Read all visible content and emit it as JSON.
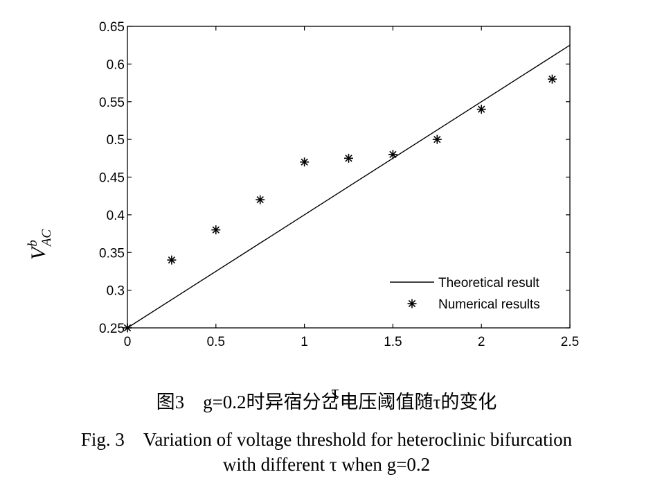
{
  "chart_data": {
    "type": "line",
    "xlim": [
      0,
      2.5
    ],
    "ylim": [
      0.25,
      0.65
    ],
    "x_ticks": [
      "0",
      "0.5",
      "1",
      "1.5",
      "2",
      "2.5"
    ],
    "y_ticks": [
      "0.25",
      "0.3",
      "0.35",
      "0.4",
      "0.45",
      "0.5",
      "0.55",
      "0.6",
      "0.65"
    ],
    "xlabel": "τ",
    "ylabel": {
      "base": "V",
      "sup": "b",
      "sub": "AC"
    },
    "legend_position": "bottom-right",
    "series": [
      {
        "name": "Theoretical result",
        "style": "line",
        "x": [
          0,
          2.5
        ],
        "y": [
          0.25,
          0.625
        ]
      },
      {
        "name": "Numerical results",
        "style": "star-marker",
        "x": [
          0,
          0.25,
          0.5,
          0.75,
          1.0,
          1.25,
          1.5,
          1.75,
          2.0,
          2.4
        ],
        "y": [
          0.25,
          0.34,
          0.38,
          0.42,
          0.47,
          0.475,
          0.48,
          0.5,
          0.54,
          0.58
        ]
      }
    ]
  },
  "caption": {
    "cn": "图3　g=0.2时异宿分岔电压阈值随τ的变化",
    "en_line1": "Fig. 3　Variation of voltage threshold for heteroclinic bifurcation",
    "en_line2": "with different τ when g=0.2"
  }
}
